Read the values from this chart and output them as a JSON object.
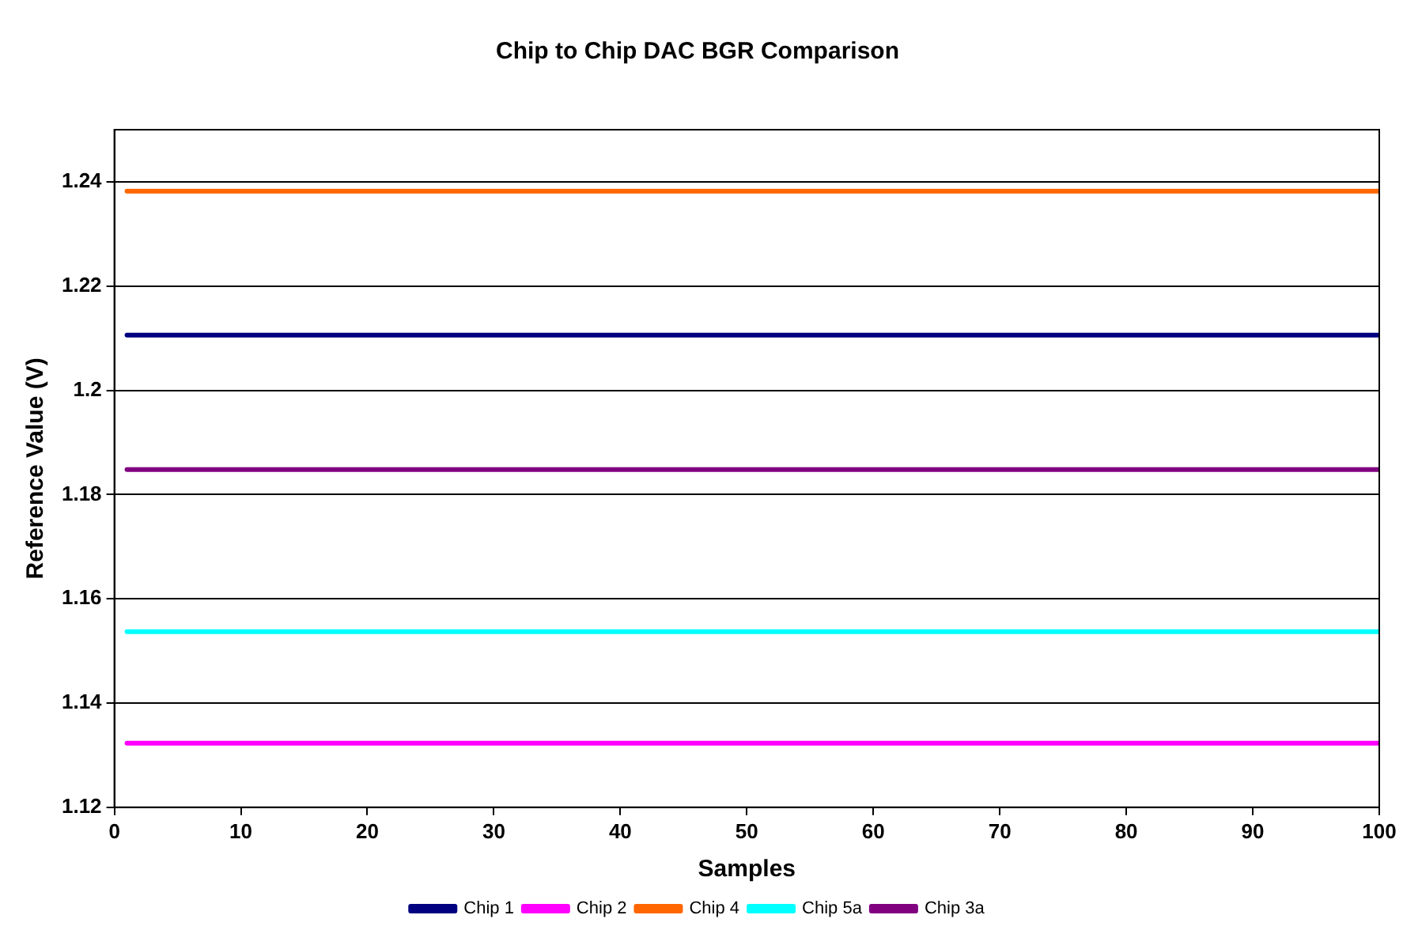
{
  "chart_data": {
    "type": "line",
    "title": "Chip to Chip DAC BGR Comparison",
    "xlabel": "Samples",
    "ylabel": "Reference Value (V)",
    "x": [
      1,
      100
    ],
    "series": [
      {
        "name": "Chip 1",
        "color": "#000080",
        "values": [
          1.2106,
          1.2106
        ]
      },
      {
        "name": "Chip 2",
        "color": "#ff00ff",
        "values": [
          1.1323,
          1.1323
        ]
      },
      {
        "name": "Chip 4",
        "color": "#ff6600",
        "values": [
          1.2382,
          1.2382
        ]
      },
      {
        "name": "Chip 5a",
        "color": "#00ffff",
        "values": [
          1.1537,
          1.1537
        ]
      },
      {
        "name": "Chip 3a",
        "color": "#800080",
        "values": [
          1.1848,
          1.1848
        ]
      }
    ],
    "xlim": [
      0,
      100
    ],
    "xticks": [
      0,
      10,
      20,
      30,
      40,
      50,
      60,
      70,
      80,
      90,
      100
    ],
    "ylim": [
      1.12,
      1.25
    ],
    "yticks": [
      1.12,
      1.14,
      1.16,
      1.18,
      1.2,
      1.22,
      1.24
    ],
    "grid": "y",
    "legend": "bottom",
    "marker": "none",
    "line_style": "solid"
  }
}
